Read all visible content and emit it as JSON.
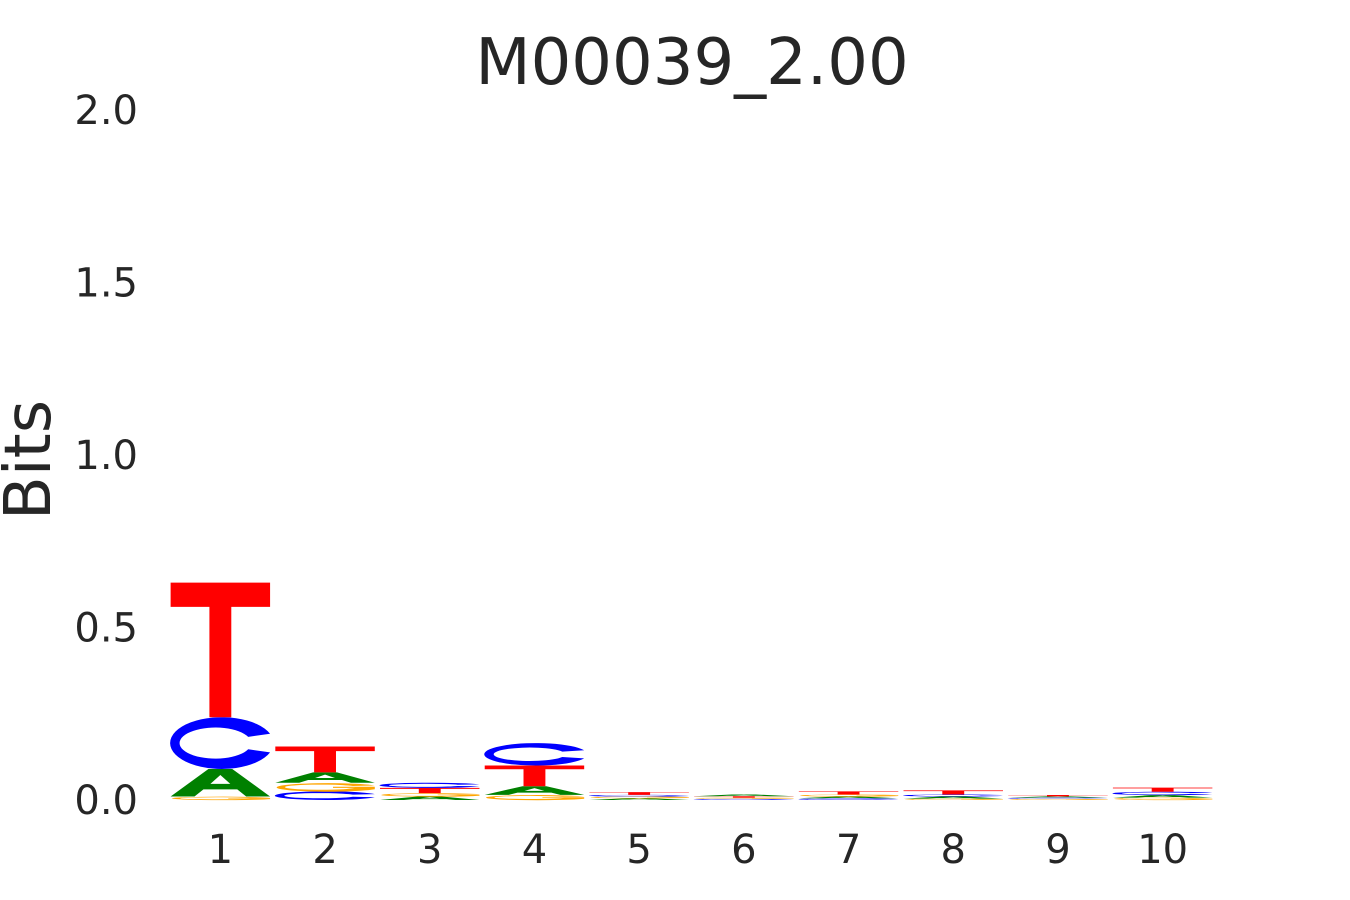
{
  "chart_data": {
    "type": "sequence-logo",
    "title": "M00039_2.00",
    "xlabel": "",
    "ylabel": "Bits",
    "ylim": [
      0,
      2.0
    ],
    "yticks": [
      "0.0",
      "0.5",
      "1.0",
      "1.5",
      "2.0"
    ],
    "grid": false,
    "categories": [
      "1",
      "2",
      "3",
      "4",
      "5",
      "6",
      "7",
      "8",
      "9",
      "10"
    ],
    "colors": {
      "A": "#008000",
      "C": "#0000ff",
      "G": "#ffa500",
      "T": "#ff0000"
    },
    "positions": [
      [
        {
          "base": "G",
          "bits": 0.01
        },
        {
          "base": "A",
          "bits": 0.08
        },
        {
          "base": "C",
          "bits": 0.15
        },
        {
          "base": "T",
          "bits": 0.39
        }
      ],
      [
        {
          "base": "C",
          "bits": 0.025
        },
        {
          "base": "G",
          "bits": 0.025
        },
        {
          "base": "A",
          "bits": 0.03
        },
        {
          "base": "T",
          "bits": 0.075
        }
      ],
      [
        {
          "base": "A",
          "bits": 0.01
        },
        {
          "base": "G",
          "bits": 0.01
        },
        {
          "base": "T",
          "bits": 0.015
        },
        {
          "base": "C",
          "bits": 0.015
        }
      ],
      [
        {
          "base": "G",
          "bits": 0.015
        },
        {
          "base": "A",
          "bits": 0.025
        },
        {
          "base": "T",
          "bits": 0.06
        },
        {
          "base": "C",
          "bits": 0.065
        }
      ],
      [
        {
          "base": "A",
          "bits": 0.005
        },
        {
          "base": "G",
          "bits": 0.005
        },
        {
          "base": "C",
          "bits": 0.005
        },
        {
          "base": "T",
          "bits": 0.008
        }
      ],
      [
        {
          "base": "C",
          "bits": 0.003
        },
        {
          "base": "G",
          "bits": 0.003
        },
        {
          "base": "T",
          "bits": 0.004
        },
        {
          "base": "A",
          "bits": 0.005
        }
      ],
      [
        {
          "base": "C",
          "bits": 0.005
        },
        {
          "base": "A",
          "bits": 0.005
        },
        {
          "base": "G",
          "bits": 0.006
        },
        {
          "base": "T",
          "bits": 0.009
        }
      ],
      [
        {
          "base": "G",
          "bits": 0.004
        },
        {
          "base": "A",
          "bits": 0.006
        },
        {
          "base": "C",
          "bits": 0.006
        },
        {
          "base": "T",
          "bits": 0.012
        }
      ],
      [
        {
          "base": "G",
          "bits": 0.002
        },
        {
          "base": "C",
          "bits": 0.003
        },
        {
          "base": "A",
          "bits": 0.003
        },
        {
          "base": "T",
          "bits": 0.004
        }
      ],
      [
        {
          "base": "G",
          "bits": 0.007
        },
        {
          "base": "A",
          "bits": 0.007
        },
        {
          "base": "C",
          "bits": 0.01
        },
        {
          "base": "T",
          "bits": 0.012
        }
      ]
    ]
  }
}
